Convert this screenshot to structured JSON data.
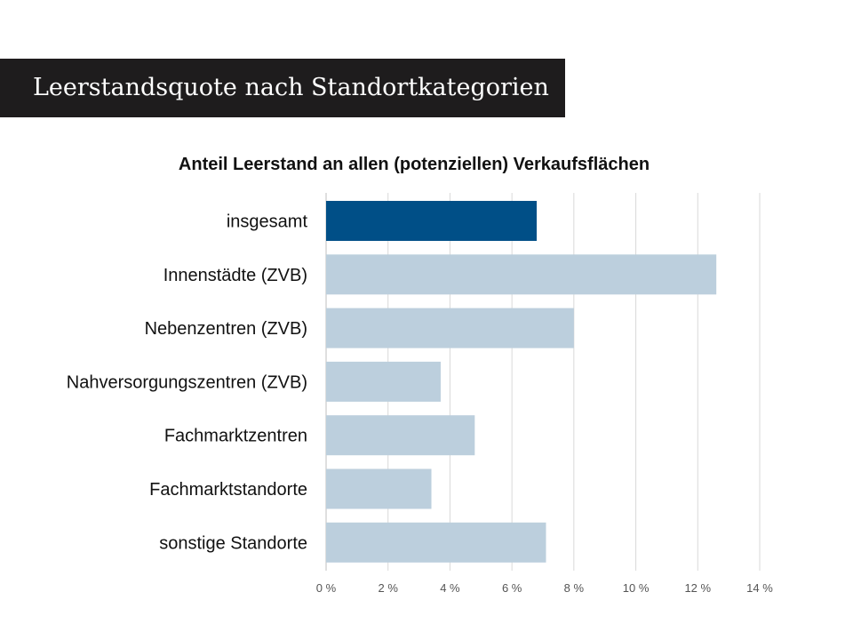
{
  "header": {
    "title": "Leerstandsquote nach Standortkategorien"
  },
  "chart_data": {
    "type": "bar",
    "orientation": "horizontal",
    "title": "Anteil Leerstand an allen (potenziellen) Verkaufsflächen",
    "xlabel": "",
    "ylabel": "",
    "categories": [
      "insgesamt",
      "Innenstädte (ZVB)",
      "Nebenzentren (ZVB)",
      "Nahversorgungszentren (ZVB)",
      "Fachmarktzentren",
      "Fachmarktstandorte",
      "sonstige Standorte"
    ],
    "values": [
      6.8,
      12.6,
      8.0,
      3.7,
      4.8,
      3.4,
      7.1
    ],
    "xlim": [
      0,
      14
    ],
    "ticks": [
      0,
      2,
      4,
      6,
      8,
      10,
      12,
      14
    ],
    "tick_labels": [
      "0 %",
      "2 %",
      "4 %",
      "6 %",
      "8 %",
      "10 %",
      "12 %",
      "14 %"
    ],
    "grid": true,
    "legend": "none",
    "colors": {
      "highlight": "#004f87",
      "default": "#bccfdd",
      "grid": "#d9d9d9"
    },
    "highlight_index": 0
  }
}
